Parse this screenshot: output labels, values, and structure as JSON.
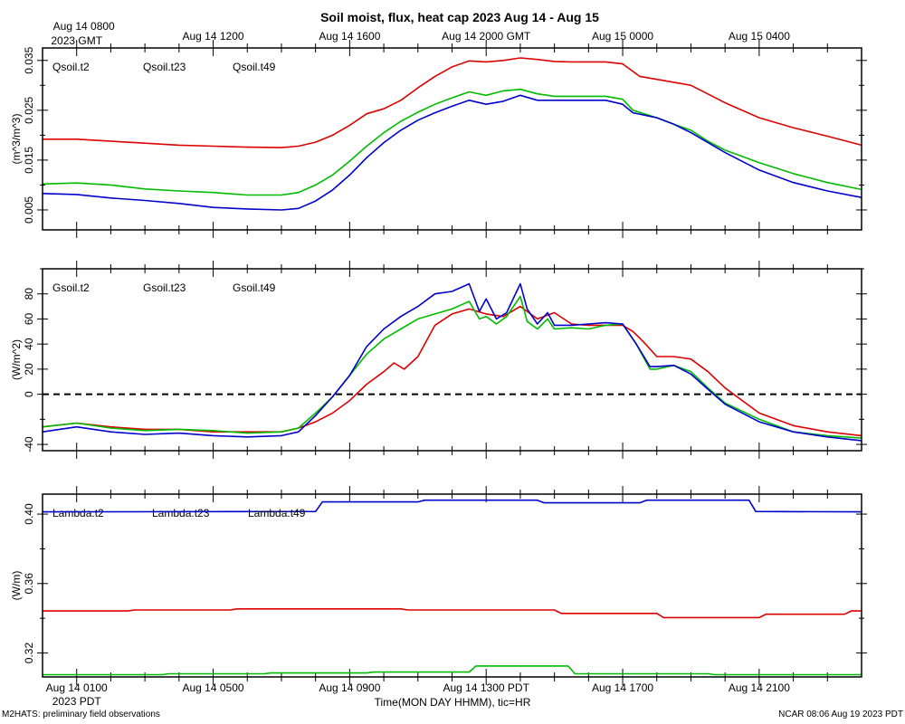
{
  "title": "Soil moist, flux, heat cap 2023 Aug 14 - Aug 15",
  "top_axis": {
    "ticks": [
      {
        "label": "Aug 14 0800",
        "hour": 0
      },
      {
        "label": "Aug 14 1200",
        "hour": 4
      },
      {
        "label": "Aug 14 1600",
        "hour": 8
      },
      {
        "label": "Aug 14 2000 GMT",
        "hour": 12
      },
      {
        "label": "Aug 15 0000",
        "hour": 16
      },
      {
        "label": "Aug 15 0400",
        "hour": 20
      }
    ],
    "first_sublabel": "2023 GMT"
  },
  "bottom_axis": {
    "ticks": [
      {
        "label": "Aug 14 0100",
        "hour": 0
      },
      {
        "label": "Aug 14 0500",
        "hour": 4
      },
      {
        "label": "Aug 14 0900",
        "hour": 8
      },
      {
        "label": "Aug 14 1300 PDT",
        "hour": 12
      },
      {
        "label": "Aug 14 1700",
        "hour": 16
      },
      {
        "label": "Aug 14 2100",
        "hour": 20
      }
    ],
    "first_sublabel": "2023 PDT",
    "title": "Time(MON DAY HHMM), tic=HR"
  },
  "footer": {
    "left": "M2HATS: preliminary field observations",
    "right": "NCAR 08:06 Aug 19 2023 PDT"
  },
  "colors": {
    "t2": "#dd0000",
    "t23": "#00bb00",
    "t49": "#0000cc"
  },
  "chart_data": [
    {
      "type": "line",
      "ylabel": "(m^3/m^3)",
      "xrange_hours": [
        -1,
        23
      ],
      "ylim": [
        0.001,
        0.0375
      ],
      "yticks": [
        0.005,
        0.015,
        0.025,
        0.035
      ],
      "ytick_labels": [
        "0.005",
        "0.015",
        "0.025",
        "0.035"
      ],
      "ylabel_rotated_ticks": true,
      "zero_line": false,
      "series": [
        {
          "name": "Qsoil.t2",
          "color_key": "t2",
          "x": [
            -1,
            0,
            2,
            3,
            4,
            5,
            6,
            6.5,
            7,
            7.5,
            8,
            8.5,
            9,
            9.5,
            10,
            10.5,
            11,
            11.5,
            12,
            12.5,
            13,
            13.5,
            14,
            14.5,
            15,
            15.5,
            16,
            16.5,
            17,
            18,
            19,
            20,
            21,
            22,
            23
          ],
          "values": [
            0.0192,
            0.0192,
            0.0184,
            0.018,
            0.0178,
            0.0176,
            0.0175,
            0.0178,
            0.0186,
            0.02,
            0.022,
            0.0243,
            0.0253,
            0.027,
            0.0295,
            0.0318,
            0.0337,
            0.0349,
            0.0347,
            0.035,
            0.0355,
            0.0352,
            0.0348,
            0.0347,
            0.0347,
            0.0347,
            0.0343,
            0.0318,
            0.0312,
            0.03,
            0.0265,
            0.0235,
            0.0215,
            0.0198,
            0.018
          ]
        },
        {
          "name": "Qsoil.t23",
          "color_key": "t23",
          "x": [
            -1,
            0,
            1,
            2,
            3,
            4,
            5,
            6,
            6.5,
            7,
            7.5,
            8,
            8.5,
            9,
            9.5,
            10,
            10.5,
            11,
            11.5,
            12,
            12.5,
            13,
            13.5,
            14,
            14.5,
            15,
            15.5,
            16,
            16.3,
            17,
            17.5,
            18,
            18.5,
            19,
            20,
            21,
            22,
            23
          ],
          "values": [
            0.0102,
            0.0104,
            0.01,
            0.0092,
            0.0088,
            0.0085,
            0.008,
            0.008,
            0.0085,
            0.01,
            0.012,
            0.0148,
            0.0178,
            0.0205,
            0.0228,
            0.0246,
            0.0262,
            0.0275,
            0.0287,
            0.028,
            0.0289,
            0.0292,
            0.0283,
            0.0278,
            0.0278,
            0.0278,
            0.0278,
            0.0272,
            0.025,
            0.0235,
            0.0222,
            0.021,
            0.0188,
            0.017,
            0.0145,
            0.0123,
            0.0105,
            0.0091
          ]
        },
        {
          "name": "Qsoil.t49",
          "color_key": "t49",
          "x": [
            -1,
            0,
            1,
            2,
            3,
            4,
            5,
            6,
            6.5,
            7,
            7.5,
            8,
            8.5,
            9,
            9.5,
            10,
            10.5,
            11,
            11.5,
            12,
            12.5,
            13,
            13.5,
            14,
            14.5,
            15,
            15.5,
            16,
            16.3,
            17,
            17.5,
            18,
            18.5,
            19,
            20,
            21,
            22,
            23
          ],
          "values": [
            0.0083,
            0.0081,
            0.0074,
            0.0069,
            0.0063,
            0.0055,
            0.0052,
            0.005,
            0.0053,
            0.0068,
            0.009,
            0.012,
            0.0155,
            0.0185,
            0.021,
            0.023,
            0.0245,
            0.0258,
            0.027,
            0.0262,
            0.0268,
            0.028,
            0.027,
            0.027,
            0.027,
            0.027,
            0.027,
            0.0262,
            0.0245,
            0.0235,
            0.0222,
            0.0205,
            0.0185,
            0.0165,
            0.013,
            0.0105,
            0.0088,
            0.0075
          ]
        }
      ]
    },
    {
      "type": "line",
      "ylabel": "(W/m^2)",
      "xrange_hours": [
        -1,
        23
      ],
      "ylim": [
        -45,
        100
      ],
      "yticks": [
        -40,
        0,
        20,
        40,
        60,
        80
      ],
      "ytick_labels": [
        "-40",
        "0",
        "20",
        "40",
        "60",
        "80"
      ],
      "zero_line": true,
      "series": [
        {
          "name": "Gsoil.t2",
          "color_key": "t2",
          "x": [
            -1,
            0,
            1,
            2,
            3,
            4,
            5,
            6,
            6.5,
            7,
            7.5,
            8,
            8.5,
            9,
            9.3,
            9.6,
            10,
            10.5,
            11,
            11.5,
            12,
            12.5,
            13,
            13.5,
            14,
            14.5,
            15,
            15.5,
            16,
            16.3,
            16.6,
            17,
            17.5,
            18,
            18.5,
            19,
            20,
            21,
            22,
            23
          ],
          "values": [
            -26,
            -23,
            -26,
            -28,
            -28,
            -30,
            -30,
            -30,
            -27,
            -22,
            -15,
            -5,
            8,
            18,
            25,
            20,
            30,
            55,
            64,
            68,
            64,
            62,
            70,
            60,
            65,
            56,
            55,
            55,
            55,
            50,
            42,
            30,
            30,
            28,
            18,
            5,
            -15,
            -25,
            -30,
            -33
          ]
        },
        {
          "name": "Gsoil.t23",
          "color_key": "t23",
          "x": [
            -1,
            0,
            1,
            2,
            3,
            4,
            5,
            6,
            6.5,
            7,
            7.5,
            8,
            8.5,
            9,
            9.5,
            10,
            10.5,
            11,
            11.5,
            11.8,
            12,
            12.3,
            12.6,
            13,
            13.2,
            13.5,
            13.8,
            14,
            14.5,
            15,
            15.5,
            16,
            16.4,
            16.8,
            17,
            17.5,
            18,
            18.5,
            19,
            20,
            21,
            22,
            23
          ],
          "values": [
            -26,
            -23,
            -27,
            -29,
            -28,
            -29,
            -31,
            -30,
            -27,
            -15,
            -2,
            15,
            32,
            44,
            52,
            60,
            64,
            68,
            74,
            60,
            62,
            56,
            62,
            78,
            58,
            52,
            60,
            52,
            53,
            52,
            55,
            56,
            40,
            20,
            20,
            23,
            18,
            5,
            -7,
            -20,
            -30,
            -33,
            -35
          ]
        },
        {
          "name": "Gsoil.t49",
          "color_key": "t49",
          "x": [
            -1,
            0,
            1,
            2,
            3,
            4,
            5,
            6,
            6.5,
            7,
            7.5,
            8,
            8.5,
            9,
            9.5,
            10,
            10.5,
            11,
            11.5,
            11.8,
            12,
            12.3,
            12.6,
            13,
            13.2,
            13.5,
            13.8,
            14,
            14.5,
            15,
            15.5,
            16,
            16.4,
            16.8,
            17,
            17.5,
            18,
            18.5,
            19,
            20,
            21,
            22,
            23
          ],
          "values": [
            -30,
            -26,
            -30,
            -32,
            -31,
            -33,
            -34,
            -33,
            -30,
            -17,
            -2,
            15,
            38,
            52,
            62,
            70,
            80,
            82,
            88,
            66,
            76,
            60,
            65,
            88,
            68,
            56,
            65,
            55,
            55,
            56,
            57,
            56,
            40,
            22,
            22,
            23,
            16,
            4,
            -8,
            -22,
            -30,
            -34,
            -37
          ]
        }
      ]
    },
    {
      "type": "line",
      "ylabel": "(W/m)",
      "xrange_hours": [
        -1,
        23
      ],
      "ylim": [
        0.3062,
        0.4115
      ],
      "yticks": [
        0.32,
        0.36,
        0.4
      ],
      "ytick_labels": [
        "0.32",
        "0.36",
        "0.40"
      ],
      "ylabel_rotated_ticks": true,
      "zero_line": false,
      "series": [
        {
          "name": "Lambda.t2",
          "color_key": "t2",
          "x": [
            -1,
            1.5,
            1.7,
            4.5,
            4.7,
            9.5,
            9.7,
            14,
            14.2,
            17,
            17.2,
            20,
            20.2,
            22.5,
            22.7,
            23
          ],
          "values": [
            0.3442,
            0.3442,
            0.3448,
            0.3448,
            0.3454,
            0.3454,
            0.3448,
            0.3448,
            0.3428,
            0.3428,
            0.3404,
            0.3404,
            0.3423,
            0.3423,
            0.3442,
            0.3442
          ]
        },
        {
          "name": "Lambda.t23",
          "color_key": "t23",
          "x": [
            -1,
            2.5,
            2.7,
            5.5,
            5.7,
            8.5,
            8.7,
            11.5,
            11.7,
            14.4,
            14.6,
            18.5,
            18.7,
            23
          ],
          "values": [
            0.3075,
            0.3075,
            0.308,
            0.308,
            0.3085,
            0.3085,
            0.309,
            0.309,
            0.3125,
            0.3125,
            0.308,
            0.308,
            0.3075,
            0.3075
          ]
        },
        {
          "name": "Lambda.t49",
          "color_key": "t49",
          "x": [
            -1,
            7,
            7.2,
            10,
            10.2,
            13.5,
            13.7,
            16.5,
            16.7,
            19.7,
            19.9,
            23
          ],
          "values": [
            0.4013,
            0.4015,
            0.407,
            0.407,
            0.408,
            0.408,
            0.4065,
            0.4065,
            0.408,
            0.408,
            0.4015,
            0.4013
          ]
        }
      ]
    }
  ]
}
